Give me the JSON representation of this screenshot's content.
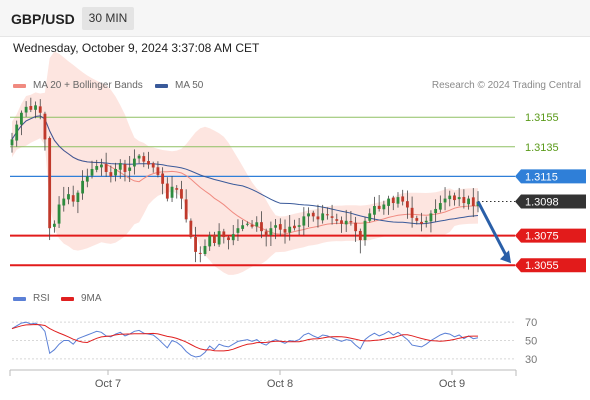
{
  "header": {
    "symbol": "GBP/USD",
    "timeframe": "30 MIN",
    "timestamp": "Wednesday, October 9, 2024 3:37:08 AM CET"
  },
  "legend": {
    "ma20_label": "MA 20 + Bollinger Bands",
    "ma50_label": "MA 50",
    "rsi_label": "RSI",
    "ma9_label": "9MA",
    "credit": "Research © 2024 Trading Central"
  },
  "colors": {
    "bull": "#2e8b3e",
    "bear": "#c0392b",
    "ma20": "#f08a80",
    "ma50": "#3a5a9a",
    "band_fill": "#fde0da",
    "rsi": "#5b80d6",
    "rsi_ma": "#e02020",
    "level_green": "#8fc063",
    "level_blue": "#2f7fd8",
    "level_red": "#e21b1b",
    "current": "#333333"
  },
  "chart_data": [
    {
      "type": "candlestick",
      "title": "GBP/USD",
      "x_ticks": [
        "Oct 7",
        "Oct 8",
        "Oct 9"
      ],
      "ylim": [
        1.3045,
        1.317
      ],
      "bollinger_ma_period": 20,
      "ma_slow_period": 50,
      "levels": [
        {
          "value": 1.3155,
          "label": "1.3155",
          "color": "#8fc063",
          "kind": "resistance"
        },
        {
          "value": 1.3135,
          "label": "1.3135",
          "color": "#8fc063",
          "kind": "resistance"
        },
        {
          "value": 1.3115,
          "label": "1.3115",
          "color": "#2f7fd8",
          "kind": "pivot"
        },
        {
          "value": 1.3098,
          "label": "1.3098",
          "color": "#333333",
          "kind": "current"
        },
        {
          "value": 1.3075,
          "label": "1.3075",
          "color": "#e21b1b",
          "kind": "support"
        },
        {
          "value": 1.3055,
          "label": "1.3055",
          "color": "#e21b1b",
          "kind": "support"
        }
      ],
      "projection": {
        "from": 1.3098,
        "to": 1.3055,
        "direction": "down"
      },
      "close_path": [
        1.314,
        1.315,
        1.3158,
        1.3162,
        1.316,
        1.3163,
        1.3158,
        1.314,
        1.308,
        1.3083,
        1.3096,
        1.31,
        1.3103,
        1.3098,
        1.3104,
        1.3112,
        1.3115,
        1.312,
        1.3122,
        1.3123,
        1.3118,
        1.3115,
        1.312,
        1.3124,
        1.3118,
        1.3121,
        1.3127,
        1.3129,
        1.3125,
        1.3123,
        1.3121,
        1.3116,
        1.311,
        1.31,
        1.3108,
        1.3106,
        1.31,
        1.3086,
        1.3074,
        1.3064,
        1.3063,
        1.3068,
        1.3075,
        1.307,
        1.3078,
        1.3074,
        1.3072,
        1.3076,
        1.308,
        1.3082,
        1.3083,
        1.3081,
        1.3084,
        1.3078,
        1.3075,
        1.308,
        1.3082,
        1.3079,
        1.3077,
        1.3081,
        1.308,
        1.3082,
        1.3088,
        1.309,
        1.3088,
        1.3086,
        1.309,
        1.3089,
        1.3087,
        1.3085,
        1.3083,
        1.3085,
        1.3084,
        1.3078,
        1.3072,
        1.3085,
        1.309,
        1.3095,
        1.3093,
        1.3096,
        1.31,
        1.3097,
        1.3101,
        1.3098,
        1.3094,
        1.3087,
        1.3085,
        1.3083,
        1.3085,
        1.309,
        1.3093,
        1.3097,
        1.31,
        1.3102,
        1.3099,
        1.3101,
        1.3097,
        1.31,
        1.3095,
        1.3098
      ]
    },
    {
      "type": "line",
      "title": "RSI",
      "series": [
        {
          "name": "RSI"
        },
        {
          "name": "9MA"
        }
      ],
      "ylim": [
        20,
        80
      ],
      "y_ticks": [
        70,
        50,
        30
      ],
      "rsi_path": [
        63,
        66,
        69,
        70,
        68,
        69,
        66,
        60,
        36,
        40,
        46,
        50,
        50,
        46,
        52,
        54,
        56,
        58,
        60,
        59,
        55,
        54,
        57,
        59,
        55,
        57,
        60,
        61,
        58,
        57,
        56,
        52,
        47,
        42,
        50,
        48,
        44,
        38,
        34,
        32,
        33,
        37,
        44,
        40,
        46,
        44,
        43,
        46,
        49,
        50,
        51,
        49,
        51,
        47,
        45,
        49,
        51,
        49,
        47,
        50,
        49,
        51,
        56,
        58,
        55,
        53,
        56,
        55,
        53,
        51,
        49,
        51,
        50,
        45,
        41,
        51,
        55,
        58,
        55,
        57,
        60,
        56,
        59,
        55,
        51,
        45,
        44,
        43,
        46,
        50,
        53,
        56,
        58,
        57,
        54,
        56,
        52,
        55,
        52,
        53
      ]
    }
  ]
}
